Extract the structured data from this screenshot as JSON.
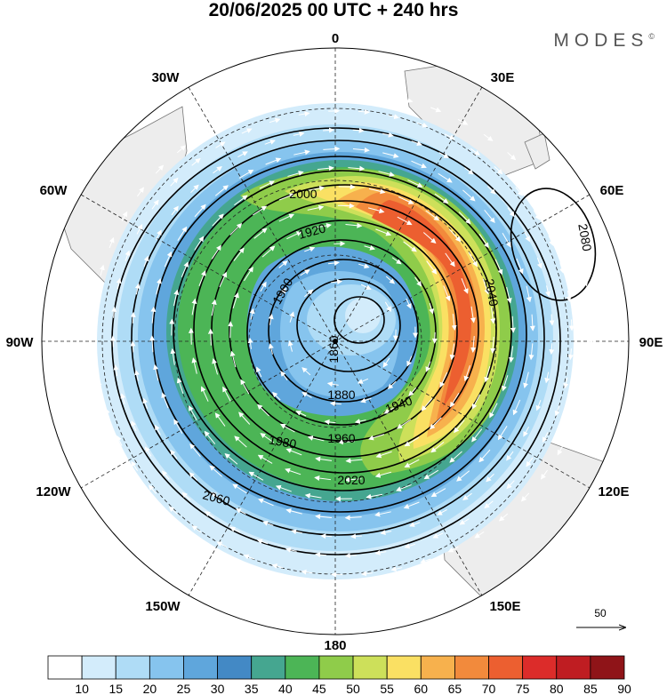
{
  "header": {
    "title": "20/06/2025  00 UTC  + 240 hrs",
    "brand": "MODES",
    "brand_mark": "©"
  },
  "longitudes": [
    "0",
    "30E",
    "60E",
    "90E",
    "120E",
    "150E",
    "180",
    "150W",
    "120W",
    "90W",
    "60W",
    "30W"
  ],
  "contour_labels": [
    "1860",
    "1880",
    "1900",
    "1920",
    "1940",
    "1960",
    "1980",
    "2000",
    "2020",
    "2040",
    "2060",
    "2080"
  ],
  "reference_vector": {
    "value": "50"
  },
  "colorbar": {
    "levels": [
      "10",
      "15",
      "20",
      "25",
      "30",
      "35",
      "40",
      "45",
      "50",
      "55",
      "60",
      "65",
      "70",
      "75",
      "80",
      "85",
      "90"
    ],
    "colors": [
      "#ffffff",
      "#d3ecfb",
      "#afdcf6",
      "#86c4ee",
      "#5fa6dc",
      "#4389c5",
      "#45a690",
      "#4cb556",
      "#8fcc4a",
      "#cde05a",
      "#fae063",
      "#f7b14d",
      "#f28a3c",
      "#ec5f30",
      "#dc2c2a",
      "#bf1d22",
      "#8f1418"
    ]
  },
  "chart_data": {
    "type": "map",
    "projection": "polar stereographic",
    "field_shaded": "wind speed",
    "field_contoured": "geopotential height",
    "contour_values": [
      1860,
      1880,
      1900,
      1920,
      1940,
      1960,
      1980,
      2000,
      2020,
      2040,
      2060,
      2080
    ],
    "shading_levels": [
      10,
      15,
      20,
      25,
      30,
      35,
      40,
      45,
      50,
      55,
      60,
      65,
      70,
      75,
      80,
      85,
      90
    ],
    "reference_vector": 50,
    "longitude_ticks": [
      "0",
      "30E",
      "60E",
      "90E",
      "120E",
      "150E",
      "180",
      "150W",
      "120W",
      "90W",
      "60W",
      "30W"
    ]
  }
}
